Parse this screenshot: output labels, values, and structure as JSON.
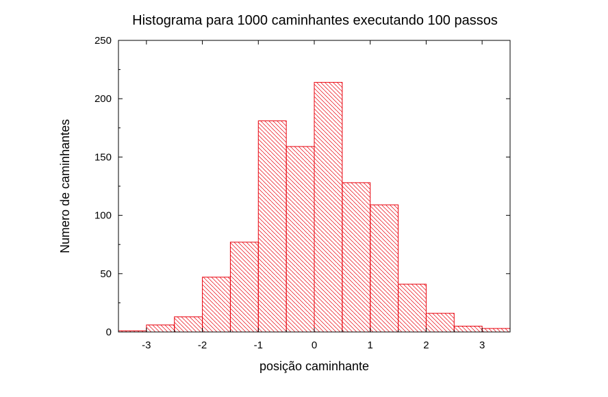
{
  "chart_data": {
    "type": "bar",
    "title": "Histograma para 1000 caminhantes executando 100 passos",
    "xlabel": "posição caminhante",
    "ylabel": "Numero de caminhantes",
    "xlim": [
      -3.5,
      3.5
    ],
    "ylim": [
      0,
      250
    ],
    "bin_width": 0.5,
    "bins": [
      {
        "x0": -3.5,
        "x1": -3.0,
        "count": 1
      },
      {
        "x0": -3.0,
        "x1": -2.5,
        "count": 6
      },
      {
        "x0": -2.5,
        "x1": -2.0,
        "count": 13
      },
      {
        "x0": -2.0,
        "x1": -1.5,
        "count": 47
      },
      {
        "x0": -1.5,
        "x1": -1.0,
        "count": 77
      },
      {
        "x0": -1.0,
        "x1": -0.5,
        "count": 181
      },
      {
        "x0": -0.5,
        "x1": 0.0,
        "count": 159
      },
      {
        "x0": 0.0,
        "x1": 0.5,
        "count": 214
      },
      {
        "x0": 0.5,
        "x1": 1.0,
        "count": 128
      },
      {
        "x0": 1.0,
        "x1": 1.5,
        "count": 109
      },
      {
        "x0": 1.5,
        "x1": 2.0,
        "count": 41
      },
      {
        "x0": 2.0,
        "x1": 2.5,
        "count": 16
      },
      {
        "x0": 2.5,
        "x1": 3.0,
        "count": 5
      },
      {
        "x0": 3.0,
        "x1": 3.5,
        "count": 3
      }
    ],
    "xticks": [
      -3,
      -2,
      -1,
      0,
      1,
      2,
      3
    ],
    "xtick_labels": [
      "-3",
      "-2",
      "-1",
      "0",
      "1",
      "2",
      "3"
    ],
    "yticks": [
      0,
      50,
      100,
      150,
      200,
      250
    ],
    "ytick_labels": [
      "0",
      "50",
      "100",
      "150",
      "200",
      "250"
    ],
    "grid": false,
    "legend": "none",
    "colors": {
      "bar_edge": "#e8000b",
      "hatch": "#e8000b",
      "axes": "#000000",
      "background": "#ffffff"
    },
    "bar_fill": "diagonal-hatch"
  }
}
